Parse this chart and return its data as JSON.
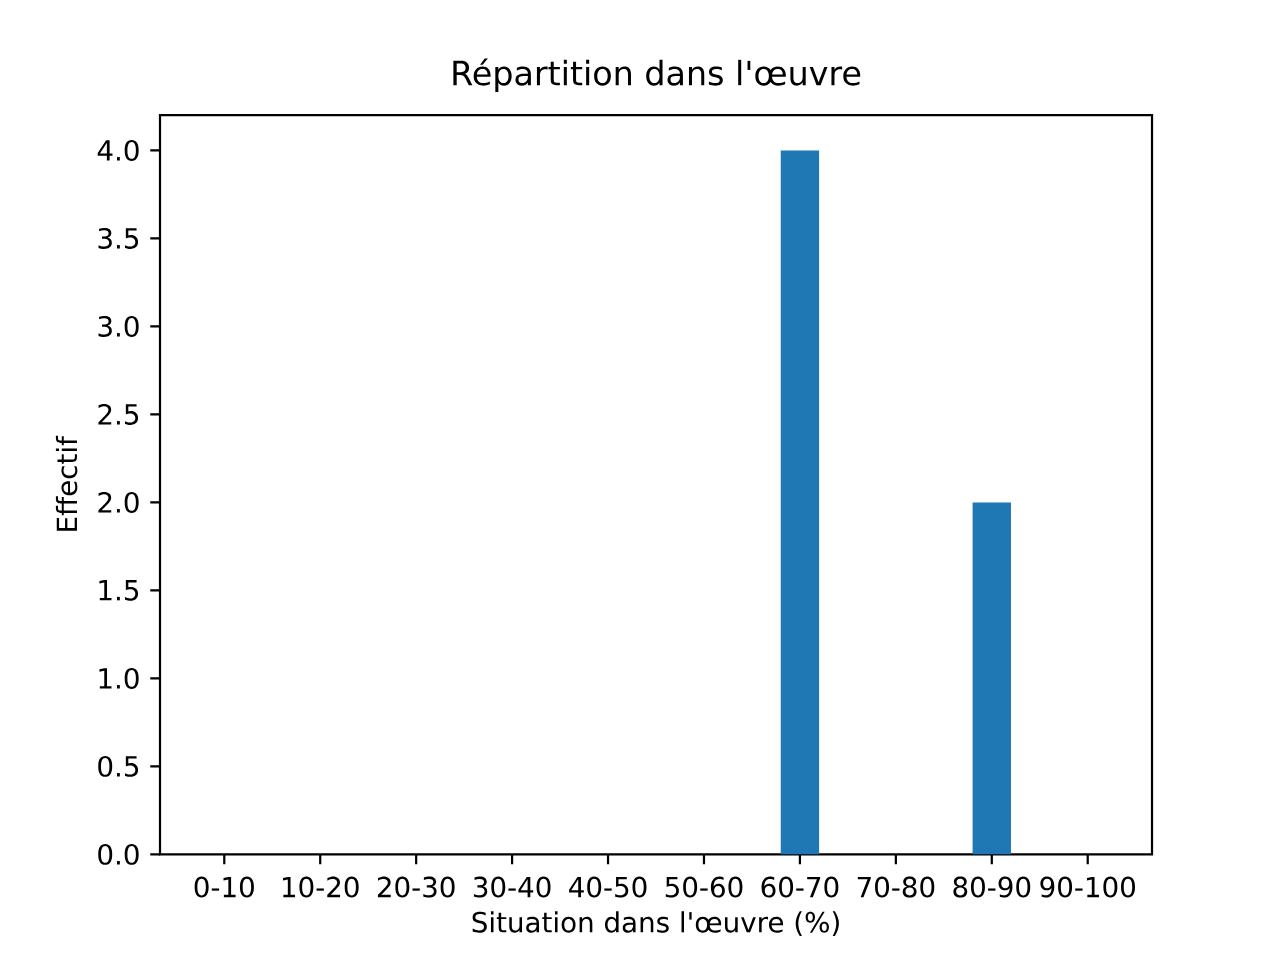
{
  "chart_data": {
    "type": "bar",
    "title": "Répartition dans l'œuvre",
    "xlabel": "Situation dans l'œuvre (%)",
    "ylabel": "Effectif",
    "categories": [
      "0-10",
      "10-20",
      "20-30",
      "30-40",
      "40-50",
      "50-60",
      "60-70",
      "70-80",
      "80-90",
      "90-100"
    ],
    "values": [
      0,
      0,
      0,
      0,
      0,
      0,
      4,
      0,
      2,
      0
    ],
    "color": "#1f77b4",
    "ylim": [
      0,
      4.2
    ],
    "yticks": [
      {
        "value": 0,
        "label": "0.0"
      },
      {
        "value": 0.5,
        "label": "0.5"
      },
      {
        "value": 1,
        "label": "1.0"
      },
      {
        "value": 1.5,
        "label": "1.5"
      },
      {
        "value": 2,
        "label": "2.0"
      },
      {
        "value": 2.5,
        "label": "2.5"
      },
      {
        "value": 3,
        "label": "3.0"
      },
      {
        "value": 3.5,
        "label": "3.5"
      },
      {
        "value": 4,
        "label": "4.0"
      }
    ]
  }
}
